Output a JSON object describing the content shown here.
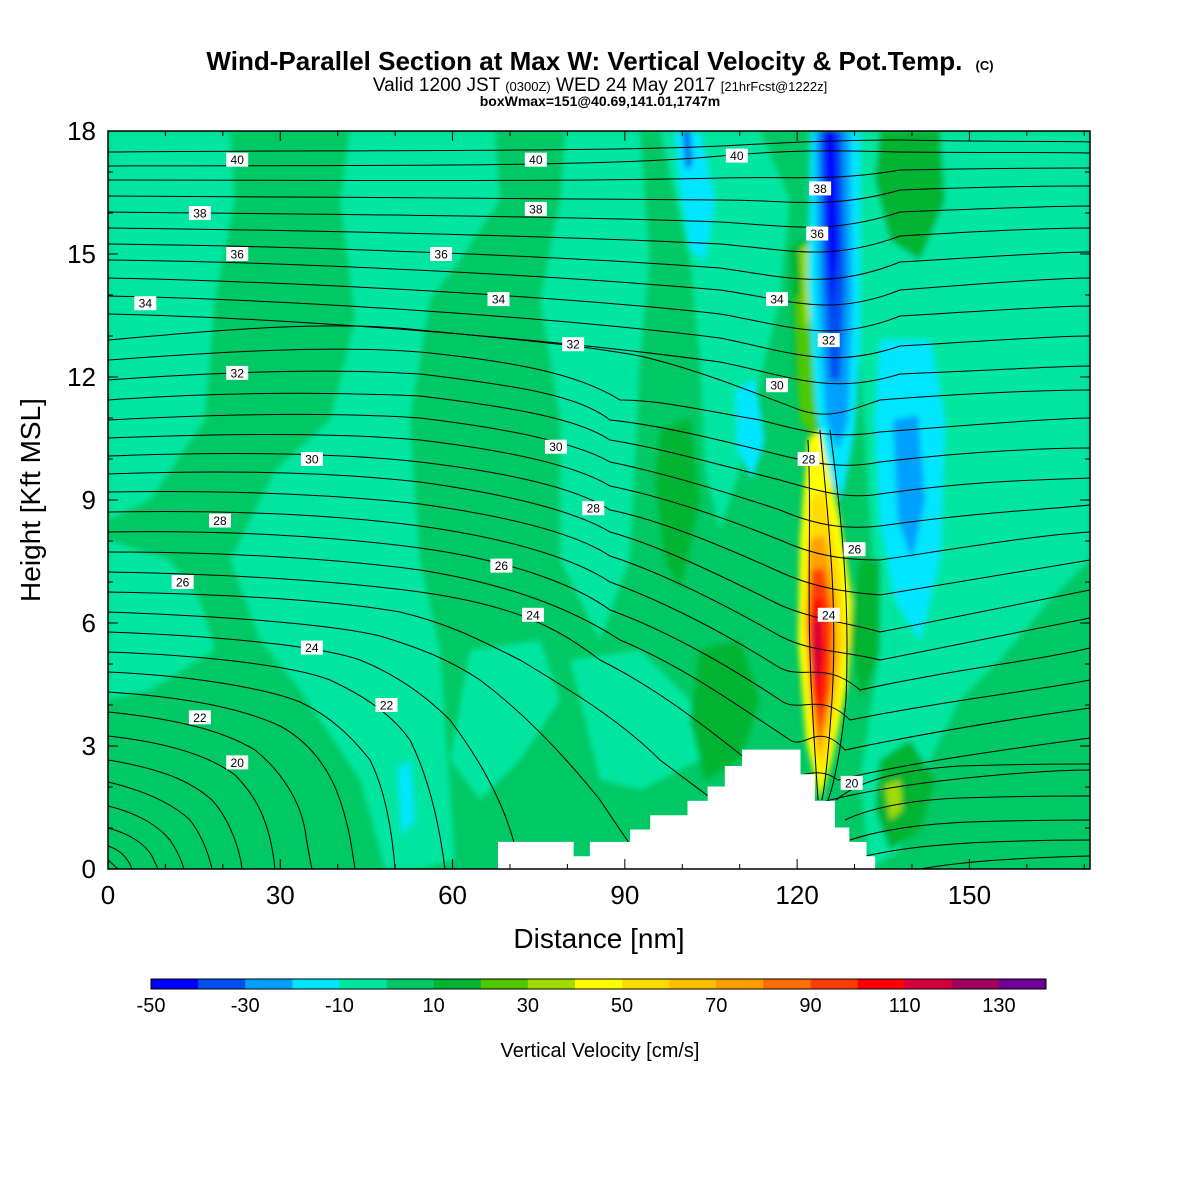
{
  "chart_data": {
    "type": "heatmap",
    "title": "Wind-Parallel Section at Max W: Vertical Velocity & Pot.Temp.",
    "title_mark": "(C)",
    "subtitle_main_a": "Valid 1200 JST",
    "subtitle_utc": "(0300Z)",
    "subtitle_main_b": "WED 24 May 2017",
    "subtitle_fcst": "[21hrFcst@1222z]",
    "subtitle2": "boxWmax=151@40.69,141.01,1747m",
    "xlabel": "Distance [nm]",
    "ylabel": "Height [Kft MSL]",
    "xlim": [
      0,
      171
    ],
    "ylim": [
      0,
      18
    ],
    "xticks": [
      "0",
      "30",
      "60",
      "90",
      "120",
      "150"
    ],
    "xtick_values": [
      0,
      30,
      60,
      90,
      120,
      150
    ],
    "yticks": [
      "0",
      "3",
      "6",
      "9",
      "12",
      "15",
      "18"
    ],
    "ytick_values": [
      0,
      3,
      6,
      9,
      12,
      15,
      18
    ],
    "colorbar": {
      "label": "Vertical Velocity [cm/s]",
      "levels": [
        -50,
        -40,
        -30,
        -20,
        -10,
        0,
        10,
        20,
        30,
        40,
        50,
        60,
        70,
        80,
        90,
        100,
        110,
        120,
        130,
        140
      ],
      "colors": [
        "#0000ff",
        "#0050f0",
        "#00a0ff",
        "#00e6ff",
        "#00e6a0",
        "#00c864",
        "#00b432",
        "#50c800",
        "#a0dc00",
        "#ffff00",
        "#ffdc00",
        "#ffbe00",
        "#ffa000",
        "#ff6e00",
        "#ff3c00",
        "#ff0000",
        "#d2003c",
        "#a0005a",
        "#6e0096"
      ],
      "tick_labels": [
        "-50",
        "-30",
        "-10",
        "10",
        "30",
        "50",
        "70",
        "90",
        "110",
        "130"
      ],
      "tick_values": [
        -50,
        -30,
        -10,
        10,
        30,
        50,
        70,
        90,
        110,
        130
      ]
    },
    "contour_labels": [
      {
        "text": "40",
        "x": 22.5,
        "y": 17.3
      },
      {
        "text": "40",
        "x": 74.5,
        "y": 17.3
      },
      {
        "text": "40",
        "x": 109.5,
        "y": 17.4
      },
      {
        "text": "38",
        "x": 16.0,
        "y": 16.0
      },
      {
        "text": "38",
        "x": 74.5,
        "y": 16.1
      },
      {
        "text": "38",
        "x": 124.0,
        "y": 16.6
      },
      {
        "text": "36",
        "x": 22.5,
        "y": 15.0
      },
      {
        "text": "36",
        "x": 58.0,
        "y": 15.0
      },
      {
        "text": "36",
        "x": 123.5,
        "y": 15.5
      },
      {
        "text": "34",
        "x": 6.5,
        "y": 13.8
      },
      {
        "text": "34",
        "x": 68.0,
        "y": 13.9
      },
      {
        "text": "34",
        "x": 116.5,
        "y": 13.9
      },
      {
        "text": "32",
        "x": 22.5,
        "y": 12.1
      },
      {
        "text": "32",
        "x": 81.0,
        "y": 12.8
      },
      {
        "text": "32",
        "x": 125.5,
        "y": 12.9
      },
      {
        "text": "30",
        "x": 35.5,
        "y": 10.0
      },
      {
        "text": "30",
        "x": 78.0,
        "y": 10.3
      },
      {
        "text": "30",
        "x": 116.5,
        "y": 11.8
      },
      {
        "text": "28",
        "x": 19.5,
        "y": 8.5
      },
      {
        "text": "28",
        "x": 84.5,
        "y": 8.8
      },
      {
        "text": "28",
        "x": 122.0,
        "y": 10.0
      },
      {
        "text": "26",
        "x": 13.0,
        "y": 7.0
      },
      {
        "text": "26",
        "x": 68.5,
        "y": 7.4
      },
      {
        "text": "26",
        "x": 130.0,
        "y": 7.8
      },
      {
        "text": "24",
        "x": 35.5,
        "y": 5.4
      },
      {
        "text": "24",
        "x": 74.0,
        "y": 6.2
      },
      {
        "text": "24",
        "x": 125.5,
        "y": 6.2
      },
      {
        "text": "22",
        "x": 16.0,
        "y": 3.7
      },
      {
        "text": "22",
        "x": 48.5,
        "y": 4.0
      },
      {
        "text": "20",
        "x": 22.5,
        "y": 2.6
      },
      {
        "text": "20",
        "x": 129.5,
        "y": 2.1
      }
    ],
    "terrain": [
      [
        68,
        0.0
      ],
      [
        68,
        0.65
      ],
      [
        81,
        0.65
      ],
      [
        81,
        0.3
      ],
      [
        84,
        0.3
      ],
      [
        84,
        0.65
      ],
      [
        91,
        0.65
      ],
      [
        91,
        0.95
      ],
      [
        94.5,
        0.95
      ],
      [
        94.5,
        1.3
      ],
      [
        101,
        1.3
      ],
      [
        101,
        1.65
      ],
      [
        104.5,
        1.65
      ],
      [
        104.5,
        2.0
      ],
      [
        107.5,
        2.0
      ],
      [
        107.5,
        2.5
      ],
      [
        110.5,
        2.5
      ],
      [
        110.5,
        2.9
      ],
      [
        120.5,
        2.9
      ],
      [
        120.5,
        2.3
      ],
      [
        123,
        2.3
      ],
      [
        123,
        1.65
      ],
      [
        126.5,
        1.65
      ],
      [
        126.5,
        1.0
      ],
      [
        129,
        1.0
      ],
      [
        129,
        0.65
      ],
      [
        132,
        0.65
      ],
      [
        132,
        0.3
      ],
      [
        133.5,
        0.3
      ],
      [
        133.5,
        0.0
      ]
    ],
    "grid": false
  }
}
